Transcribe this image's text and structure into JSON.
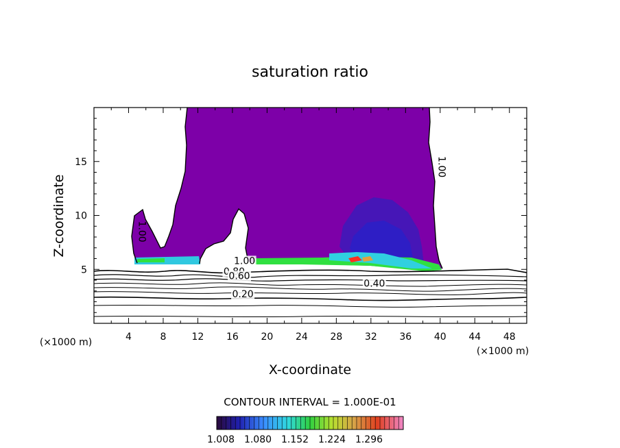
{
  "chart_data": {
    "type": "heatmap",
    "title": "saturation ratio",
    "xlabel": "X-coordinate",
    "ylabel": "Z-coordinate",
    "x_units_left": "(×1000 m)",
    "x_units_right": "(×1000 m)",
    "xlim": [
      0,
      50
    ],
    "ylim": [
      0,
      20
    ],
    "x_ticks": [
      4,
      8,
      12,
      16,
      20,
      24,
      28,
      32,
      36,
      40,
      44,
      48
    ],
    "y_ticks": [
      5,
      10,
      15
    ],
    "grid": false,
    "contour_interval_label": "CONTOUR INTERVAL = 1.000E-01",
    "contour_labels": [
      {
        "text": "1.00",
        "x": 39.8,
        "z": 14.5
      },
      {
        "text": "1.00",
        "x": 5.2,
        "z": 8.5
      },
      {
        "text": "1.00",
        "x": 17.4,
        "z": 5.5
      },
      {
        "text": "0.80",
        "x": 16.2,
        "z": 4.5
      },
      {
        "text": "0.60",
        "x": 16.8,
        "z": 4.1
      },
      {
        "text": "0.40",
        "x": 32.4,
        "z": 3.4
      },
      {
        "text": "0.20",
        "x": 17.2,
        "z": 2.4
      }
    ],
    "colorbar": {
      "ticks": [
        "1.008",
        "1.080",
        "1.152",
        "1.224",
        "1.296"
      ],
      "colors": [
        "#2a0a3a",
        "#1a1ac8",
        "#3a8cff",
        "#30e0e0",
        "#30d040",
        "#c8e030",
        "#e0a040",
        "#e04020",
        "#f080c0"
      ]
    },
    "colors": {
      "supersaturated": "#7d00a8",
      "core": "#2a1ab0",
      "blue": "#3050ff",
      "cyan": "#30d0e0",
      "green": "#30e040",
      "red": "#ff3020"
    }
  }
}
